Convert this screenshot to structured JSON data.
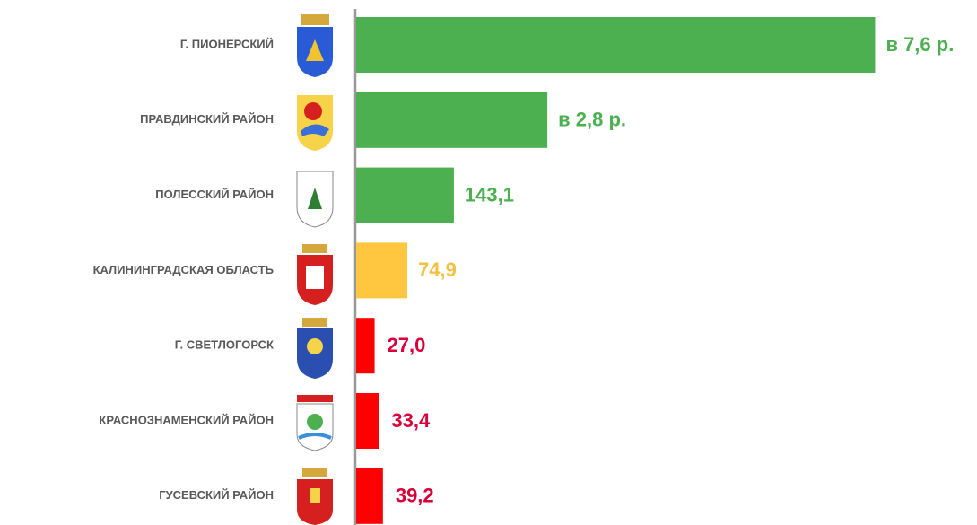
{
  "chart_data": {
    "type": "bar",
    "orientation": "horizontal",
    "categories": [
      "Г. ПИОНЕРСКИЙ",
      "ПРАВДИНСКИЙ РАЙОН",
      "ПОЛЕССКИЙ РАЙОН",
      "КАЛИНИНГРАДСКАЯ ОБЛАСТЬ",
      "Г. СВЕТЛОГОРСК",
      "КРАСНОЗНАМЕНСКИЙ РАЙОН",
      "ГУСЕВСКИЙ РАЙОН"
    ],
    "values": [
      760,
      280,
      143.1,
      74.9,
      27.0,
      33.4,
      39.2
    ],
    "value_labels": [
      "в 7,6 р.",
      "в 2,8 р.",
      "143,1",
      "74,9",
      "27,0",
      "33,4",
      "39,2"
    ],
    "colors": [
      "#4CAF50",
      "#4CAF50",
      "#4CAF50",
      "#FFC740",
      "#FF0000",
      "#FF0000",
      "#FF0000"
    ],
    "label_colors": [
      "#4CAF50",
      "#4CAF50",
      "#4CAF50",
      "#F5C040",
      "#D9003A",
      "#D9003A",
      "#D9003A"
    ],
    "xlim": [
      0,
      900
    ]
  }
}
